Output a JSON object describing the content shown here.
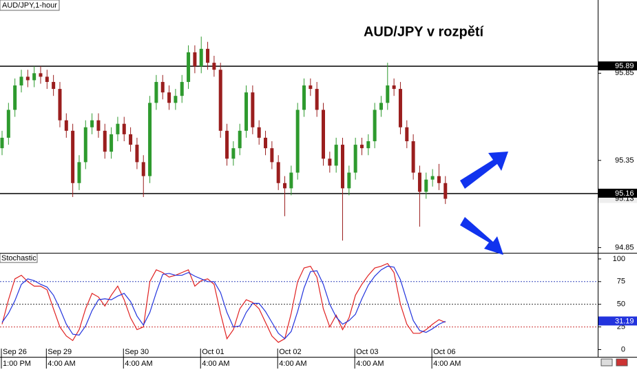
{
  "chart_data": {
    "type": "candlestick",
    "title": "AUD/JPY v rozpětí",
    "symbol_label": "AUD/JPY,1-hour",
    "categories": [
      {
        "date": "Sep 26",
        "time": "1:00 PM"
      },
      null,
      null,
      null,
      null,
      null,
      null,
      {
        "date": "Sep 29",
        "time": "4:00 AM"
      },
      null,
      null,
      null,
      null,
      null,
      null,
      null,
      null,
      null,
      null,
      null,
      {
        "date": "Sep 30",
        "time": "4:00 AM"
      },
      null,
      null,
      null,
      null,
      null,
      null,
      null,
      null,
      null,
      null,
      null,
      {
        "date": "Oct 01",
        "time": "4:00 AM"
      },
      null,
      null,
      null,
      null,
      null,
      null,
      null,
      null,
      null,
      null,
      null,
      {
        "date": "Oct 02",
        "time": "4:00 AM"
      },
      null,
      null,
      null,
      null,
      null,
      null,
      null,
      null,
      null,
      null,
      null,
      {
        "date": "Oct 03",
        "time": "4:00 AM"
      },
      null,
      null,
      null,
      null,
      null,
      null,
      null,
      null,
      null,
      null,
      null,
      {
        "date": "Oct 06",
        "time": "4:00 AM"
      },
      null,
      null
    ],
    "open": [
      95.42,
      95.48,
      95.64,
      95.78,
      95.83,
      95.81,
      95.85,
      95.83,
      95.8,
      95.76,
      95.58,
      95.52,
      95.22,
      95.34,
      95.54,
      95.58,
      95.52,
      95.4,
      95.5,
      95.56,
      95.5,
      95.44,
      95.34,
      95.26,
      95.68,
      95.8,
      95.74,
      95.68,
      95.72,
      95.8,
      95.97,
      95.89,
      95.99,
      95.91,
      95.87,
      95.52,
      95.36,
      95.42,
      95.52,
      95.74,
      95.54,
      95.48,
      95.42,
      95.34,
      95.22,
      95.19,
      95.28,
      95.64,
      95.78,
      95.76,
      95.64,
      95.36,
      95.32,
      95.44,
      95.19,
      95.28,
      95.44,
      95.42,
      95.46,
      95.64,
      95.68,
      95.78,
      95.76,
      95.54,
      95.46,
      95.28,
      95.17,
      95.24,
      95.26,
      95.22
    ],
    "high": [
      95.52,
      95.68,
      95.82,
      95.87,
      95.87,
      95.89,
      95.89,
      95.87,
      95.84,
      95.8,
      95.62,
      95.56,
      95.38,
      95.58,
      95.62,
      95.62,
      95.56,
      95.54,
      95.6,
      95.6,
      95.54,
      95.48,
      95.38,
      95.72,
      95.84,
      95.84,
      95.78,
      95.76,
      95.84,
      96.01,
      96.01,
      96.06,
      96.03,
      95.95,
      95.91,
      95.56,
      95.46,
      95.56,
      95.78,
      95.78,
      95.58,
      95.52,
      95.46,
      95.38,
      95.26,
      95.32,
      95.68,
      95.82,
      95.82,
      95.8,
      95.68,
      95.4,
      95.48,
      95.48,
      95.32,
      95.48,
      95.48,
      95.5,
      95.68,
      95.72,
      95.91,
      95.82,
      95.8,
      95.58,
      95.5,
      95.32,
      95.28,
      95.3,
      95.33,
      95.26
    ],
    "low": [
      95.38,
      95.44,
      95.6,
      95.74,
      95.77,
      95.77,
      95.79,
      95.76,
      95.72,
      95.54,
      95.48,
      95.14,
      95.18,
      95.3,
      95.5,
      95.48,
      95.36,
      95.36,
      95.46,
      95.46,
      95.4,
      95.3,
      95.14,
      95.22,
      95.64,
      95.7,
      95.64,
      95.64,
      95.68,
      95.76,
      95.85,
      95.85,
      95.87,
      95.83,
      95.48,
      95.32,
      95.32,
      95.38,
      95.48,
      95.5,
      95.44,
      95.38,
      95.3,
      95.18,
      95.03,
      95.15,
      95.24,
      95.6,
      95.72,
      95.6,
      95.32,
      95.28,
      95.28,
      94.89,
      95.15,
      95.24,
      95.38,
      95.38,
      95.42,
      95.6,
      95.64,
      95.72,
      95.5,
      95.42,
      95.24,
      94.97,
      95.13,
      95.2,
      95.18,
      95.1
    ],
    "close": [
      95.48,
      95.64,
      95.78,
      95.83,
      95.81,
      95.85,
      95.83,
      95.8,
      95.76,
      95.58,
      95.52,
      95.22,
      95.34,
      95.54,
      95.58,
      95.52,
      95.4,
      95.5,
      95.56,
      95.5,
      95.44,
      95.34,
      95.26,
      95.68,
      95.8,
      95.74,
      95.68,
      95.72,
      95.8,
      95.97,
      95.89,
      95.99,
      95.91,
      95.87,
      95.52,
      95.36,
      95.42,
      95.52,
      95.74,
      95.54,
      95.48,
      95.42,
      95.34,
      95.22,
      95.19,
      95.28,
      95.64,
      95.78,
      95.76,
      95.64,
      95.36,
      95.32,
      95.44,
      95.19,
      95.28,
      95.44,
      95.42,
      95.46,
      95.64,
      95.68,
      95.78,
      95.76,
      95.54,
      95.46,
      95.28,
      95.17,
      95.24,
      95.26,
      95.22,
      95.13
    ],
    "up_color": "#2e9a2e",
    "down_color": "#9a1e1e",
    "ylim": [
      94.82,
      96.27
    ],
    "yticks": [
      95.85,
      95.35,
      94.85
    ],
    "levels": [
      95.89,
      95.16
    ],
    "stochastic": {
      "title": "Stochastic",
      "ylim": [
        -8,
        106
      ],
      "yticks": [
        100,
        75,
        50,
        25,
        0
      ],
      "reference_lines": [
        75,
        50,
        25
      ],
      "reference_colors": [
        "#3344bb",
        "#333333",
        "#cc3333"
      ],
      "series": [
        {
          "color": "#e02020",
          "values": [
            28,
            55,
            78,
            82,
            75,
            70,
            70,
            66,
            45,
            25,
            15,
            10,
            22,
            45,
            62,
            58,
            48,
            60,
            70,
            55,
            35,
            22,
            25,
            75,
            88,
            85,
            80,
            82,
            85,
            88,
            70,
            76,
            78,
            72,
            40,
            12,
            22,
            45,
            55,
            52,
            45,
            30,
            15,
            8,
            12,
            40,
            75,
            90,
            92,
            80,
            45,
            25,
            38,
            22,
            35,
            60,
            72,
            82,
            90,
            92,
            95,
            85,
            50,
            28,
            18,
            18,
            22,
            28,
            33,
            30
          ]
        },
        {
          "color": "#2233dd",
          "values": [
            30,
            40,
            54,
            72,
            78,
            76,
            72,
            69,
            60,
            45,
            28,
            17,
            16,
            26,
            43,
            55,
            56,
            55,
            59,
            62,
            53,
            37,
            27,
            41,
            63,
            83,
            84,
            82,
            82,
            85,
            81,
            78,
            75,
            75,
            63,
            41,
            25,
            26,
            41,
            51,
            51,
            42,
            30,
            18,
            12,
            20,
            42,
            68,
            86,
            87,
            72,
            50,
            36,
            28,
            32,
            39,
            56,
            71,
            81,
            88,
            92,
            91,
            77,
            54,
            32,
            21,
            19,
            23,
            28,
            31.19
          ]
        }
      ]
    }
  }
}
